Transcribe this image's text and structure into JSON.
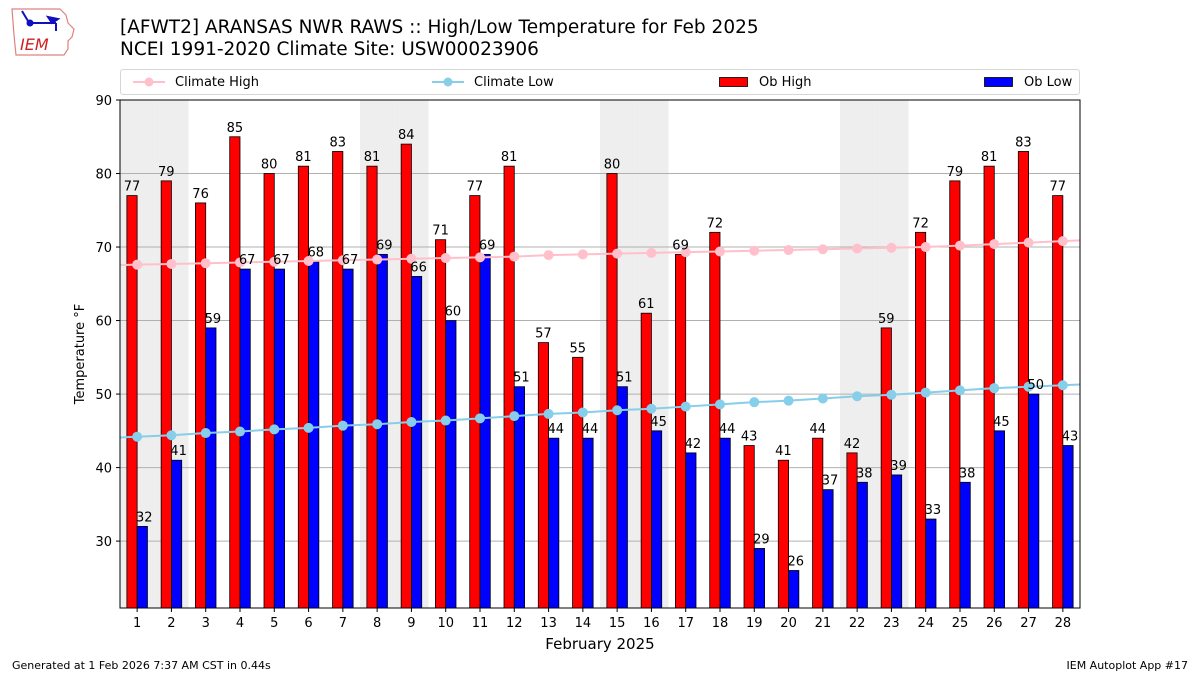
{
  "header": {
    "logo_text": "IEM",
    "title_line1": "[AFWT2] ARANSAS NWR RAWS :: High/Low Temperature for Feb 2025",
    "title_line2": "NCEI 1991-2020 Climate Site: USW00023906"
  },
  "footer": {
    "generated": "Generated at 1 Feb 2026 7:37 AM CST in 0.44s",
    "app": "IEM Autoplot App #17"
  },
  "colors": {
    "ob_high": "#ff0000",
    "ob_low": "#0000ff",
    "climate_high": "#ffc0cb",
    "climate_low": "#87ceeb",
    "weekend_shade": "#eeeeee",
    "grid": "#b0b0b0"
  },
  "chart_data": {
    "type": "bar",
    "title": "[AFWT2] ARANSAS NWR RAWS :: High/Low Temperature for Feb 2025",
    "subtitle": "NCEI 1991-2020 Climate Site: USW00023906",
    "xlabel": "February 2025",
    "ylabel": "Temperature °F",
    "ylim": [
      20.9,
      90
    ],
    "xlim": [
      0.5,
      28.5
    ],
    "yticks": [
      30,
      40,
      50,
      60,
      70,
      80,
      90
    ],
    "grid": "horizontal",
    "legend_placement": "top",
    "categories": [
      1,
      2,
      3,
      4,
      5,
      6,
      7,
      8,
      9,
      10,
      11,
      12,
      13,
      14,
      15,
      16,
      17,
      18,
      19,
      20,
      21,
      22,
      23,
      24,
      25,
      26,
      27,
      28
    ],
    "shaded_days": [
      1,
      2,
      8,
      9,
      15,
      16,
      22,
      23
    ],
    "series": [
      {
        "name": "Climate High",
        "kind": "line",
        "values": [
          67.6,
          67.7,
          67.8,
          67.9,
          68.0,
          68.1,
          68.2,
          68.3,
          68.4,
          68.5,
          68.6,
          68.7,
          68.9,
          69.0,
          69.1,
          69.2,
          69.3,
          69.4,
          69.5,
          69.6,
          69.7,
          69.8,
          69.9,
          70.0,
          70.2,
          70.4,
          70.6,
          70.8
        ]
      },
      {
        "name": "Climate Low",
        "kind": "line",
        "values": [
          44.2,
          44.4,
          44.7,
          44.9,
          45.2,
          45.4,
          45.7,
          45.9,
          46.2,
          46.4,
          46.7,
          47.0,
          47.3,
          47.5,
          47.8,
          48.0,
          48.3,
          48.6,
          48.9,
          49.1,
          49.4,
          49.7,
          49.9,
          50.2,
          50.5,
          50.8,
          51.0,
          51.2
        ]
      },
      {
        "name": "Ob High",
        "kind": "bar",
        "values": [
          77,
          79,
          76,
          85,
          80,
          81,
          83,
          81,
          84,
          71,
          77,
          81,
          57,
          55,
          80,
          61,
          69,
          72,
          43,
          41,
          44,
          42,
          59,
          72,
          79,
          81,
          83,
          77
        ]
      },
      {
        "name": "Ob Low",
        "kind": "bar",
        "values": [
          32,
          41,
          59,
          67,
          67,
          68,
          67,
          69,
          66,
          60,
          69,
          51,
          44,
          44,
          51,
          45,
          42,
          44,
          29,
          26,
          37,
          38,
          39,
          33,
          38,
          45,
          50,
          43
        ]
      }
    ]
  }
}
